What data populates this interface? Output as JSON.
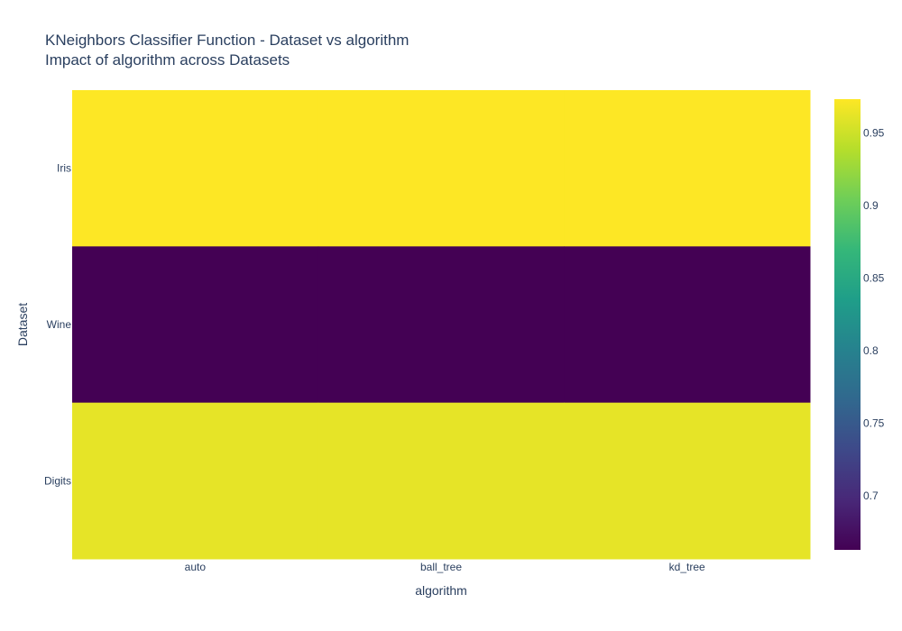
{
  "chart_data": {
    "type": "heatmap",
    "title": "KNeighbors Classifier Function - Dataset vs algorithm",
    "subtitle": "Impact of algorithm across Datasets",
    "xlabel": "algorithm",
    "ylabel": "Dataset",
    "x": [
      "auto",
      "ball_tree",
      "kd_tree"
    ],
    "y": [
      "Iris",
      "Wine",
      "Digits"
    ],
    "z": [
      [
        0.9733,
        0.9733,
        0.9733
      ],
      [
        0.6629,
        0.6629,
        0.6629
      ],
      [
        0.9622,
        0.9622,
        0.9622
      ]
    ],
    "colorscale": "Viridis",
    "zmin": 0.6629,
    "zmax": 0.9733,
    "colorbar_ticks": [
      0.7,
      0.75,
      0.8,
      0.85,
      0.9,
      0.95
    ],
    "colorbar_tick_labels": [
      "0.7",
      "0.75",
      "0.8",
      "0.85",
      "0.9",
      "0.95"
    ]
  }
}
